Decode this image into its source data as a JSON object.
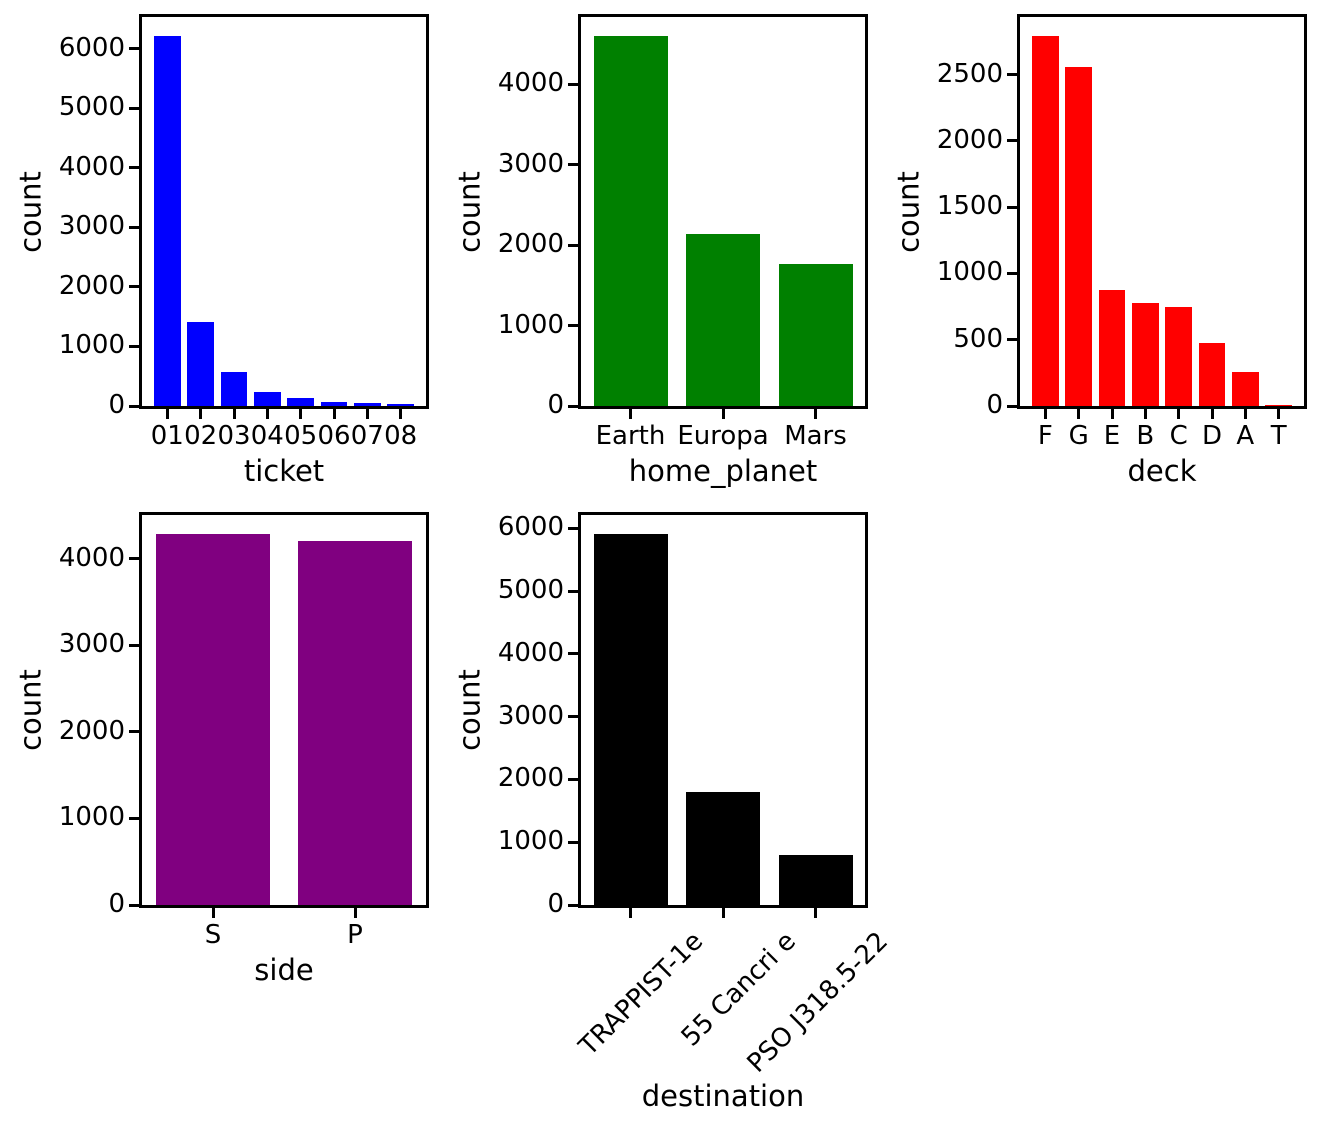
{
  "figure": {
    "background": "#ffffff",
    "axis_color": "#000000"
  },
  "chart_data": [
    {
      "type": "bar",
      "xlabel": "ticket",
      "ylabel": "count",
      "bar_color": "#0000ff",
      "categories": [
        "01",
        "02",
        "03",
        "04",
        "05",
        "06",
        "07",
        "08"
      ],
      "values": [
        6217,
        1412,
        565,
        230,
        127,
        70,
        45,
        27
      ],
      "yticks": [
        0,
        1000,
        2000,
        3000,
        4000,
        5000,
        6000
      ],
      "ylim": [
        0,
        6528
      ],
      "xtick_rotation": 0,
      "grid": false,
      "legend": false
    },
    {
      "type": "bar",
      "xlabel": "home_planet",
      "ylabel": "count",
      "bar_color": "#008000",
      "categories": [
        "Earth",
        "Europa",
        "Mars"
      ],
      "values": [
        4602,
        2131,
        1759
      ],
      "yticks": [
        0,
        1000,
        2000,
        3000,
        4000
      ],
      "ylim": [
        0,
        4832
      ],
      "xtick_rotation": 0,
      "grid": false,
      "legend": false
    },
    {
      "type": "bar",
      "xlabel": "deck",
      "ylabel": "count",
      "bar_color": "#ff0000",
      "categories": [
        "F",
        "G",
        "E",
        "B",
        "C",
        "D",
        "A",
        "T"
      ],
      "values": [
        2794,
        2559,
        876,
        779,
        747,
        478,
        256,
        5
      ],
      "yticks": [
        0,
        500,
        1000,
        1500,
        2000,
        2500
      ],
      "ylim": [
        0,
        2934
      ],
      "xtick_rotation": 0,
      "grid": false,
      "legend": false
    },
    {
      "type": "bar",
      "xlabel": "side",
      "ylabel": "count",
      "bar_color": "#800080",
      "categories": [
        "S",
        "P"
      ],
      "values": [
        4288,
        4206
      ],
      "yticks": [
        0,
        1000,
        2000,
        3000,
        4000
      ],
      "ylim": [
        0,
        4502
      ],
      "xtick_rotation": 0,
      "grid": false,
      "legend": false
    },
    {
      "type": "bar",
      "xlabel": "destination",
      "ylabel": "count",
      "bar_color": "#000000",
      "categories": [
        "TRAPPIST-1e",
        "55 Cancri e",
        "PSO J318.5-22"
      ],
      "values": [
        5915,
        1800,
        796
      ],
      "yticks": [
        0,
        1000,
        2000,
        3000,
        4000,
        5000,
        6000
      ],
      "ylim": [
        0,
        6211
      ],
      "xtick_rotation": 45,
      "grid": false,
      "legend": false
    }
  ]
}
